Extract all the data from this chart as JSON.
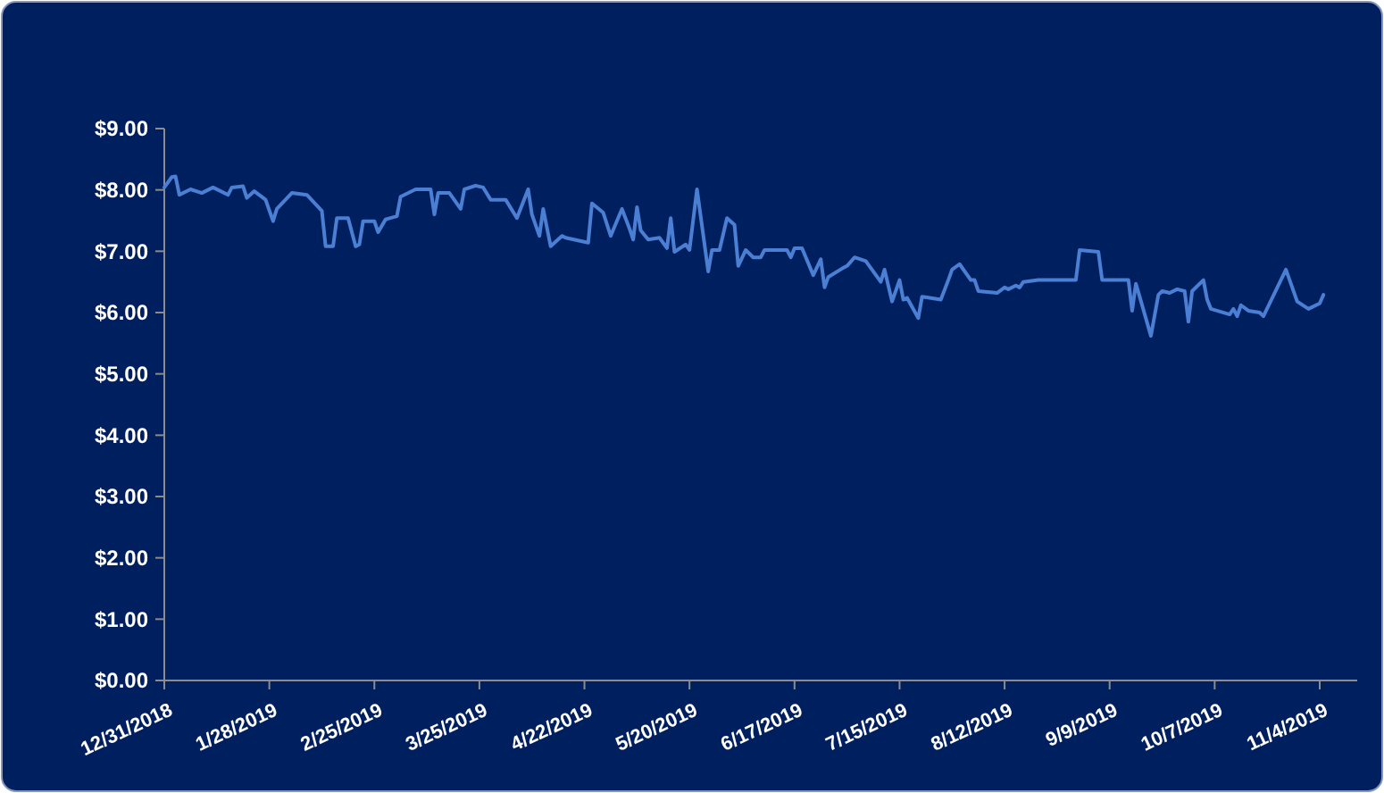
{
  "chart_data": {
    "type": "line",
    "x": [
      "2018-12-31",
      "2019-01-02",
      "2019-01-03",
      "2019-01-04",
      "2019-01-07",
      "2019-01-10",
      "2019-01-13",
      "2019-01-17",
      "2019-01-18",
      "2019-01-21",
      "2019-01-22",
      "2019-01-24",
      "2019-01-27",
      "2019-01-29",
      "2019-01-30",
      "2019-02-03",
      "2019-02-07",
      "2019-02-11",
      "2019-02-12",
      "2019-02-14",
      "2019-02-15",
      "2019-02-18",
      "2019-02-20",
      "2019-02-21",
      "2019-02-22",
      "2019-02-25",
      "2019-02-26",
      "2019-02-28",
      "2019-03-03",
      "2019-03-04",
      "2019-03-08",
      "2019-03-12",
      "2019-03-13",
      "2019-03-14",
      "2019-03-17",
      "2019-03-20",
      "2019-03-21",
      "2019-03-24",
      "2019-03-26",
      "2019-03-28",
      "2019-04-01",
      "2019-04-04",
      "2019-04-07",
      "2019-04-08",
      "2019-04-10",
      "2019-04-11",
      "2019-04-13",
      "2019-04-16",
      "2019-04-17",
      "2019-04-23",
      "2019-04-24",
      "2019-04-27",
      "2019-04-29",
      "2019-05-02",
      "2019-05-04",
      "2019-05-05",
      "2019-05-06",
      "2019-05-07",
      "2019-05-09",
      "2019-05-12",
      "2019-05-14",
      "2019-05-15",
      "2019-05-16",
      "2019-05-19",
      "2019-05-20",
      "2019-05-22",
      "2019-05-25",
      "2019-05-26",
      "2019-05-28",
      "2019-05-30",
      "2019-06-01",
      "2019-06-02",
      "2019-06-04",
      "2019-06-06",
      "2019-06-08",
      "2019-06-09",
      "2019-06-15",
      "2019-06-16",
      "2019-06-17",
      "2019-06-19",
      "2019-06-22",
      "2019-06-24",
      "2019-06-25",
      "2019-06-26",
      "2019-06-30",
      "2019-07-01",
      "2019-07-03",
      "2019-07-06",
      "2019-07-10",
      "2019-07-11",
      "2019-07-13",
      "2019-07-15",
      "2019-07-16",
      "2019-07-17",
      "2019-07-20",
      "2019-07-21",
      "2019-07-23",
      "2019-07-26",
      "2019-07-28",
      "2019-07-29",
      "2019-07-31",
      "2019-08-03",
      "2019-08-04",
      "2019-08-05",
      "2019-08-10",
      "2019-08-12",
      "2019-08-13",
      "2019-08-15",
      "2019-08-16",
      "2019-08-17",
      "2019-08-21",
      "2019-08-31",
      "2019-09-01",
      "2019-09-06",
      "2019-09-07",
      "2019-09-14",
      "2019-09-15",
      "2019-09-16",
      "2019-09-17",
      "2019-09-20",
      "2019-09-22",
      "2019-09-23",
      "2019-09-25",
      "2019-09-27",
      "2019-09-29",
      "2019-09-30",
      "2019-10-01",
      "2019-10-04",
      "2019-10-05",
      "2019-10-06",
      "2019-10-11",
      "2019-10-12",
      "2019-10-13",
      "2019-10-14",
      "2019-10-16",
      "2019-10-19",
      "2019-10-20",
      "2019-10-26",
      "2019-10-29",
      "2019-11-01",
      "2019-11-04",
      "2019-11-05"
    ],
    "series": [
      {
        "color": "#4a7fd4",
        "values": [
          8.04,
          8.21,
          8.22,
          7.92,
          8.01,
          7.95,
          8.04,
          7.92,
          8.04,
          8.06,
          7.87,
          7.98,
          7.84,
          7.49,
          7.69,
          7.95,
          7.92,
          7.66,
          7.08,
          7.08,
          7.54,
          7.54,
          7.08,
          7.11,
          7.49,
          7.49,
          7.31,
          7.52,
          7.57,
          7.89,
          8.01,
          8.01,
          7.6,
          7.95,
          7.95,
          7.69,
          8.01,
          8.07,
          8.04,
          7.84,
          7.84,
          7.54,
          8.01,
          7.6,
          7.25,
          7.69,
          7.08,
          7.25,
          7.22,
          7.14,
          7.78,
          7.63,
          7.25,
          7.69,
          7.37,
          7.19,
          7.72,
          7.34,
          7.19,
          7.22,
          7.05,
          7.54,
          6.99,
          7.11,
          7.02,
          8.01,
          6.67,
          7.02,
          7.02,
          7.54,
          7.43,
          6.76,
          7.02,
          6.9,
          6.9,
          7.02,
          7.02,
          6.9,
          7.05,
          7.05,
          6.61,
          6.87,
          6.41,
          6.58,
          6.73,
          6.76,
          6.9,
          6.84,
          6.5,
          6.7,
          6.18,
          6.53,
          6.21,
          6.24,
          5.91,
          6.26,
          6.24,
          6.21,
          6.53,
          6.7,
          6.79,
          6.53,
          6.53,
          6.35,
          6.32,
          6.41,
          6.38,
          6.44,
          6.41,
          6.5,
          6.53,
          6.53,
          7.02,
          6.99,
          6.53,
          6.53,
          6.03,
          6.47,
          6.26,
          5.62,
          6.29,
          6.35,
          6.32,
          6.38,
          6.35,
          5.85,
          6.35,
          6.53,
          6.21,
          6.06,
          5.97,
          6.06,
          5.94,
          6.12,
          6.03,
          6.0,
          5.94,
          6.7,
          6.18,
          6.06,
          6.15,
          6.29
        ]
      }
    ],
    "xlim": [
      "2018-12-31",
      "2019-11-14"
    ],
    "xticks": [
      {
        "value": "2018-12-31",
        "label": "12/31/2018"
      },
      {
        "value": "2019-01-28",
        "label": "1/28/2019"
      },
      {
        "value": "2019-02-25",
        "label": "2/25/2019"
      },
      {
        "value": "2019-03-25",
        "label": "3/25/2019"
      },
      {
        "value": "2019-04-22",
        "label": "4/22/2019"
      },
      {
        "value": "2019-05-20",
        "label": "5/20/2019"
      },
      {
        "value": "2019-06-17",
        "label": "6/17/2019"
      },
      {
        "value": "2019-07-15",
        "label": "7/15/2019"
      },
      {
        "value": "2019-08-12",
        "label": "8/12/2019"
      },
      {
        "value": "2019-09-09",
        "label": "9/9/2019"
      },
      {
        "value": "2019-10-07",
        "label": "10/7/2019"
      },
      {
        "value": "2019-11-04",
        "label": "11/4/2019"
      }
    ],
    "ylim": [
      0,
      9
    ],
    "yticks": [
      {
        "value": 0,
        "label": "$0.00"
      },
      {
        "value": 1,
        "label": "$1.00"
      },
      {
        "value": 2,
        "label": "$2.00"
      },
      {
        "value": 3,
        "label": "$3.00"
      },
      {
        "value": 4,
        "label": "$4.00"
      },
      {
        "value": 5,
        "label": "$5.00"
      },
      {
        "value": 6,
        "label": "$6.00"
      },
      {
        "value": 7,
        "label": "$7.00"
      },
      {
        "value": 8,
        "label": "$8.00"
      },
      {
        "value": 9,
        "label": "$9.00"
      }
    ],
    "marker": "none",
    "line_style": "solid"
  }
}
